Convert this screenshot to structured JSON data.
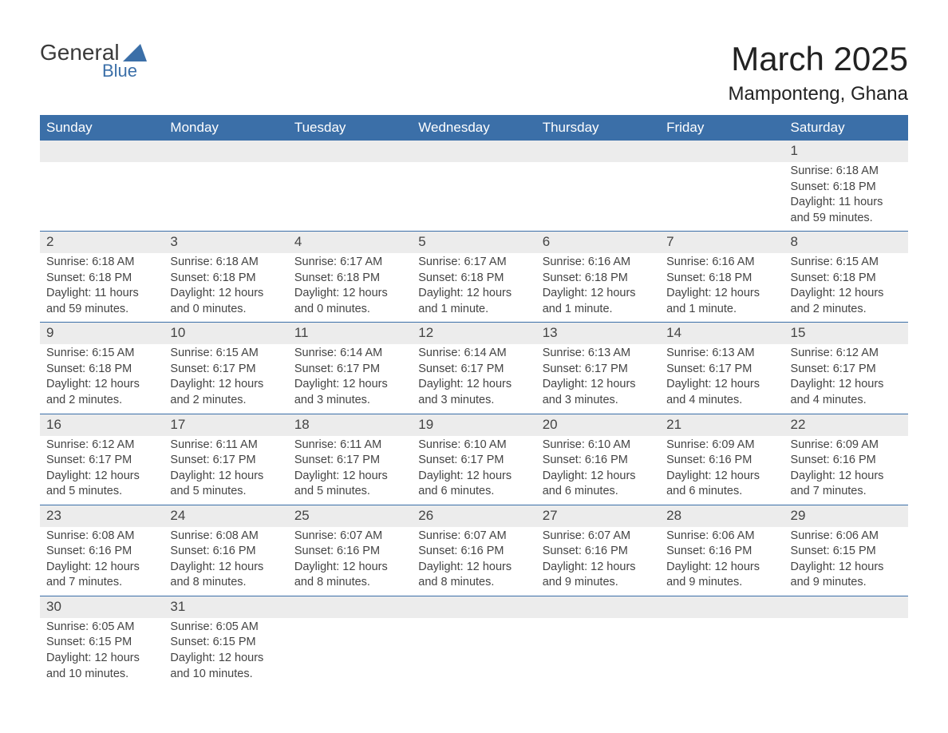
{
  "logo": {
    "word1": "General",
    "word2": "Blue"
  },
  "title": "March 2025",
  "location": "Mamponteng, Ghana",
  "colors": {
    "header_bg": "#3b6fa8",
    "header_text": "#ffffff",
    "daynum_bg": "#ececec",
    "row_border": "#3b6fa8",
    "body_text": "#444444",
    "title_text": "#222222",
    "background": "#ffffff"
  },
  "typography": {
    "font_family": "Arial, Helvetica, sans-serif",
    "month_title_size_pt": 32,
    "location_size_pt": 18,
    "header_size_pt": 13,
    "daynum_size_pt": 13,
    "body_size_pt": 11
  },
  "layout": {
    "columns": 7,
    "rows": 6,
    "first_day_column_index": 6
  },
  "weekdays": [
    "Sunday",
    "Monday",
    "Tuesday",
    "Wednesday",
    "Thursday",
    "Friday",
    "Saturday"
  ],
  "days": [
    {
      "n": "1",
      "sunrise": "Sunrise: 6:18 AM",
      "sunset": "Sunset: 6:18 PM",
      "daylight": "Daylight: 11 hours and 59 minutes."
    },
    {
      "n": "2",
      "sunrise": "Sunrise: 6:18 AM",
      "sunset": "Sunset: 6:18 PM",
      "daylight": "Daylight: 11 hours and 59 minutes."
    },
    {
      "n": "3",
      "sunrise": "Sunrise: 6:18 AM",
      "sunset": "Sunset: 6:18 PM",
      "daylight": "Daylight: 12 hours and 0 minutes."
    },
    {
      "n": "4",
      "sunrise": "Sunrise: 6:17 AM",
      "sunset": "Sunset: 6:18 PM",
      "daylight": "Daylight: 12 hours and 0 minutes."
    },
    {
      "n": "5",
      "sunrise": "Sunrise: 6:17 AM",
      "sunset": "Sunset: 6:18 PM",
      "daylight": "Daylight: 12 hours and 1 minute."
    },
    {
      "n": "6",
      "sunrise": "Sunrise: 6:16 AM",
      "sunset": "Sunset: 6:18 PM",
      "daylight": "Daylight: 12 hours and 1 minute."
    },
    {
      "n": "7",
      "sunrise": "Sunrise: 6:16 AM",
      "sunset": "Sunset: 6:18 PM",
      "daylight": "Daylight: 12 hours and 1 minute."
    },
    {
      "n": "8",
      "sunrise": "Sunrise: 6:15 AM",
      "sunset": "Sunset: 6:18 PM",
      "daylight": "Daylight: 12 hours and 2 minutes."
    },
    {
      "n": "9",
      "sunrise": "Sunrise: 6:15 AM",
      "sunset": "Sunset: 6:18 PM",
      "daylight": "Daylight: 12 hours and 2 minutes."
    },
    {
      "n": "10",
      "sunrise": "Sunrise: 6:15 AM",
      "sunset": "Sunset: 6:17 PM",
      "daylight": "Daylight: 12 hours and 2 minutes."
    },
    {
      "n": "11",
      "sunrise": "Sunrise: 6:14 AM",
      "sunset": "Sunset: 6:17 PM",
      "daylight": "Daylight: 12 hours and 3 minutes."
    },
    {
      "n": "12",
      "sunrise": "Sunrise: 6:14 AM",
      "sunset": "Sunset: 6:17 PM",
      "daylight": "Daylight: 12 hours and 3 minutes."
    },
    {
      "n": "13",
      "sunrise": "Sunrise: 6:13 AM",
      "sunset": "Sunset: 6:17 PM",
      "daylight": "Daylight: 12 hours and 3 minutes."
    },
    {
      "n": "14",
      "sunrise": "Sunrise: 6:13 AM",
      "sunset": "Sunset: 6:17 PM",
      "daylight": "Daylight: 12 hours and 4 minutes."
    },
    {
      "n": "15",
      "sunrise": "Sunrise: 6:12 AM",
      "sunset": "Sunset: 6:17 PM",
      "daylight": "Daylight: 12 hours and 4 minutes."
    },
    {
      "n": "16",
      "sunrise": "Sunrise: 6:12 AM",
      "sunset": "Sunset: 6:17 PM",
      "daylight": "Daylight: 12 hours and 5 minutes."
    },
    {
      "n": "17",
      "sunrise": "Sunrise: 6:11 AM",
      "sunset": "Sunset: 6:17 PM",
      "daylight": "Daylight: 12 hours and 5 minutes."
    },
    {
      "n": "18",
      "sunrise": "Sunrise: 6:11 AM",
      "sunset": "Sunset: 6:17 PM",
      "daylight": "Daylight: 12 hours and 5 minutes."
    },
    {
      "n": "19",
      "sunrise": "Sunrise: 6:10 AM",
      "sunset": "Sunset: 6:17 PM",
      "daylight": "Daylight: 12 hours and 6 minutes."
    },
    {
      "n": "20",
      "sunrise": "Sunrise: 6:10 AM",
      "sunset": "Sunset: 6:16 PM",
      "daylight": "Daylight: 12 hours and 6 minutes."
    },
    {
      "n": "21",
      "sunrise": "Sunrise: 6:09 AM",
      "sunset": "Sunset: 6:16 PM",
      "daylight": "Daylight: 12 hours and 6 minutes."
    },
    {
      "n": "22",
      "sunrise": "Sunrise: 6:09 AM",
      "sunset": "Sunset: 6:16 PM",
      "daylight": "Daylight: 12 hours and 7 minutes."
    },
    {
      "n": "23",
      "sunrise": "Sunrise: 6:08 AM",
      "sunset": "Sunset: 6:16 PM",
      "daylight": "Daylight: 12 hours and 7 minutes."
    },
    {
      "n": "24",
      "sunrise": "Sunrise: 6:08 AM",
      "sunset": "Sunset: 6:16 PM",
      "daylight": "Daylight: 12 hours and 8 minutes."
    },
    {
      "n": "25",
      "sunrise": "Sunrise: 6:07 AM",
      "sunset": "Sunset: 6:16 PM",
      "daylight": "Daylight: 12 hours and 8 minutes."
    },
    {
      "n": "26",
      "sunrise": "Sunrise: 6:07 AM",
      "sunset": "Sunset: 6:16 PM",
      "daylight": "Daylight: 12 hours and 8 minutes."
    },
    {
      "n": "27",
      "sunrise": "Sunrise: 6:07 AM",
      "sunset": "Sunset: 6:16 PM",
      "daylight": "Daylight: 12 hours and 9 minutes."
    },
    {
      "n": "28",
      "sunrise": "Sunrise: 6:06 AM",
      "sunset": "Sunset: 6:16 PM",
      "daylight": "Daylight: 12 hours and 9 minutes."
    },
    {
      "n": "29",
      "sunrise": "Sunrise: 6:06 AM",
      "sunset": "Sunset: 6:15 PM",
      "daylight": "Daylight: 12 hours and 9 minutes."
    },
    {
      "n": "30",
      "sunrise": "Sunrise: 6:05 AM",
      "sunset": "Sunset: 6:15 PM",
      "daylight": "Daylight: 12 hours and 10 minutes."
    },
    {
      "n": "31",
      "sunrise": "Sunrise: 6:05 AM",
      "sunset": "Sunset: 6:15 PM",
      "daylight": "Daylight: 12 hours and 10 minutes."
    }
  ]
}
